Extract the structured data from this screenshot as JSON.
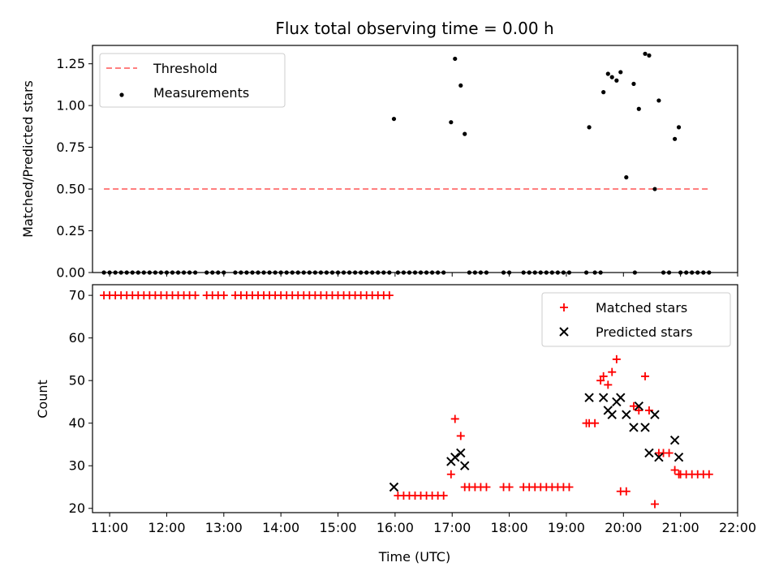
{
  "chart_data": [
    {
      "type": "scatter",
      "title": "Flux total observing time = 0.00 h",
      "xlabel": "",
      "ylabel": "Matched/Predicted stars",
      "xlim": [
        10.7,
        22.0
      ],
      "ylim": [
        0,
        1.36
      ],
      "yticks": [
        0,
        0.25,
        0.5,
        0.75,
        1.0,
        1.25
      ],
      "ytick_labels": [
        "0.00",
        "0.25",
        "0.50",
        "0.75",
        "1.00",
        "1.25"
      ],
      "legend_position": "top-left",
      "series": [
        {
          "name": "Threshold",
          "kind": "line",
          "color": "#ff7f7f",
          "dash": true,
          "x": [
            10.9,
            21.5
          ],
          "y": [
            0.5,
            0.5
          ]
        },
        {
          "name": "Measurements",
          "kind": "dot",
          "color": "#000000",
          "x": [
            10.9,
            11.0,
            11.1,
            11.2,
            11.3,
            11.4,
            11.5,
            11.6,
            11.7,
            11.8,
            11.9,
            12.0,
            12.1,
            12.2,
            12.3,
            12.4,
            12.5,
            12.7,
            12.8,
            12.9,
            13.0,
            13.2,
            13.3,
            13.4,
            13.5,
            13.6,
            13.7,
            13.8,
            13.9,
            14.0,
            14.1,
            14.2,
            14.3,
            14.4,
            14.5,
            14.6,
            14.7,
            14.8,
            14.9,
            15.0,
            15.1,
            15.2,
            15.3,
            15.4,
            15.5,
            15.6,
            15.7,
            15.8,
            15.9,
            16.05,
            16.15,
            16.25,
            16.35,
            16.45,
            16.55,
            16.65,
            16.75,
            16.85,
            17.3,
            17.4,
            17.5,
            17.6,
            17.9,
            18.0,
            18.25,
            18.35,
            18.45,
            18.55,
            18.65,
            18.75,
            18.85,
            18.95,
            19.05,
            19.35,
            19.5,
            19.6,
            20.2,
            20.7,
            20.8,
            21.0,
            21.1,
            21.2,
            21.3,
            21.4,
            21.5,
            15.98,
            16.98,
            17.05,
            17.15,
            17.22,
            19.4,
            19.65,
            19.73,
            19.8,
            19.88,
            19.95,
            20.05,
            20.18,
            20.27,
            20.38,
            20.45,
            20.55,
            20.62,
            20.9,
            20.97
          ],
          "y": [
            0,
            0,
            0,
            0,
            0,
            0,
            0,
            0,
            0,
            0,
            0,
            0,
            0,
            0,
            0,
            0,
            0,
            0,
            0,
            0,
            0,
            0,
            0,
            0,
            0,
            0,
            0,
            0,
            0,
            0,
            0,
            0,
            0,
            0,
            0,
            0,
            0,
            0,
            0,
            0,
            0,
            0,
            0,
            0,
            0,
            0,
            0,
            0,
            0,
            0,
            0,
            0,
            0,
            0,
            0,
            0,
            0,
            0,
            0,
            0,
            0,
            0,
            0,
            0,
            0,
            0,
            0,
            0,
            0,
            0,
            0,
            0,
            0,
            0,
            0,
            0,
            0,
            0,
            0,
            0,
            0,
            0,
            0,
            0,
            0,
            0.92,
            0.9,
            1.28,
            1.12,
            0.83,
            0.87,
            1.08,
            1.19,
            1.17,
            1.15,
            1.2,
            0.57,
            1.13,
            0.98,
            1.31,
            1.3,
            0.5,
            1.03,
            0.8,
            0.87
          ]
        }
      ]
    },
    {
      "type": "scatter",
      "title": "",
      "xlabel": "Time (UTC)",
      "ylabel": "Count",
      "xlim": [
        10.7,
        22.0
      ],
      "ylim": [
        19,
        72.5
      ],
      "yticks": [
        20,
        30,
        40,
        50,
        60,
        70
      ],
      "ytick_labels": [
        "20",
        "30",
        "40",
        "50",
        "60",
        "70"
      ],
      "xticks": [
        11,
        12,
        13,
        14,
        15,
        16,
        17,
        18,
        19,
        20,
        21,
        22
      ],
      "xtick_labels": [
        "11:00",
        "12:00",
        "13:00",
        "14:00",
        "15:00",
        "16:00",
        "17:00",
        "18:00",
        "19:00",
        "20:00",
        "21:00",
        "22:00"
      ],
      "legend_position": "top-right",
      "series": [
        {
          "name": "Matched stars",
          "kind": "plus",
          "color": "#ff0000",
          "x": [
            10.9,
            11.0,
            11.1,
            11.2,
            11.3,
            11.4,
            11.5,
            11.6,
            11.7,
            11.8,
            11.9,
            12.0,
            12.1,
            12.2,
            12.3,
            12.4,
            12.5,
            12.7,
            12.8,
            12.9,
            13.0,
            13.2,
            13.3,
            13.4,
            13.5,
            13.6,
            13.7,
            13.8,
            13.9,
            14.0,
            14.1,
            14.2,
            14.3,
            14.4,
            14.5,
            14.6,
            14.7,
            14.8,
            14.9,
            15.0,
            15.1,
            15.2,
            15.3,
            15.4,
            15.5,
            15.6,
            15.7,
            15.8,
            15.9,
            16.05,
            16.15,
            16.25,
            16.35,
            16.45,
            16.55,
            16.65,
            16.75,
            16.85,
            16.98,
            17.05,
            17.15,
            17.22,
            17.3,
            17.4,
            17.5,
            17.6,
            17.9,
            18.0,
            18.25,
            18.35,
            18.45,
            18.55,
            18.65,
            18.75,
            18.85,
            18.95,
            19.05,
            19.35,
            19.4,
            19.5,
            19.6,
            19.65,
            19.73,
            19.8,
            19.88,
            19.95,
            20.05,
            20.18,
            20.27,
            20.38,
            20.45,
            20.55,
            20.62,
            20.7,
            20.8,
            20.9,
            20.97,
            21.0,
            21.1,
            21.2,
            21.3,
            21.4,
            21.5
          ],
          "y": [
            70,
            70,
            70,
            70,
            70,
            70,
            70,
            70,
            70,
            70,
            70,
            70,
            70,
            70,
            70,
            70,
            70,
            70,
            70,
            70,
            70,
            70,
            70,
            70,
            70,
            70,
            70,
            70,
            70,
            70,
            70,
            70,
            70,
            70,
            70,
            70,
            70,
            70,
            70,
            70,
            70,
            70,
            70,
            70,
            70,
            70,
            70,
            70,
            70,
            23,
            23,
            23,
            23,
            23,
            23,
            23,
            23,
            23,
            28,
            41,
            37,
            25,
            25,
            25,
            25,
            25,
            25,
            25,
            25,
            25,
            25,
            25,
            25,
            25,
            25,
            25,
            25,
            40,
            40,
            40,
            50,
            51,
            49,
            52,
            55,
            24,
            24,
            44,
            43,
            51,
            43,
            21,
            33,
            33,
            33,
            29,
            28,
            28,
            28,
            28,
            28,
            28,
            28
          ]
        },
        {
          "name": "Predicted stars",
          "kind": "x",
          "color": "#000000",
          "x": [
            15.98,
            16.98,
            17.05,
            17.15,
            17.22,
            19.4,
            19.65,
            19.73,
            19.8,
            19.88,
            19.95,
            20.05,
            20.18,
            20.27,
            20.38,
            20.45,
            20.55,
            20.62,
            20.9,
            20.97
          ],
          "y": [
            25,
            31,
            32,
            33,
            30,
            46,
            46,
            43,
            42,
            45,
            46,
            42,
            39,
            44,
            39,
            33,
            42,
            32,
            36,
            32
          ]
        }
      ]
    }
  ]
}
